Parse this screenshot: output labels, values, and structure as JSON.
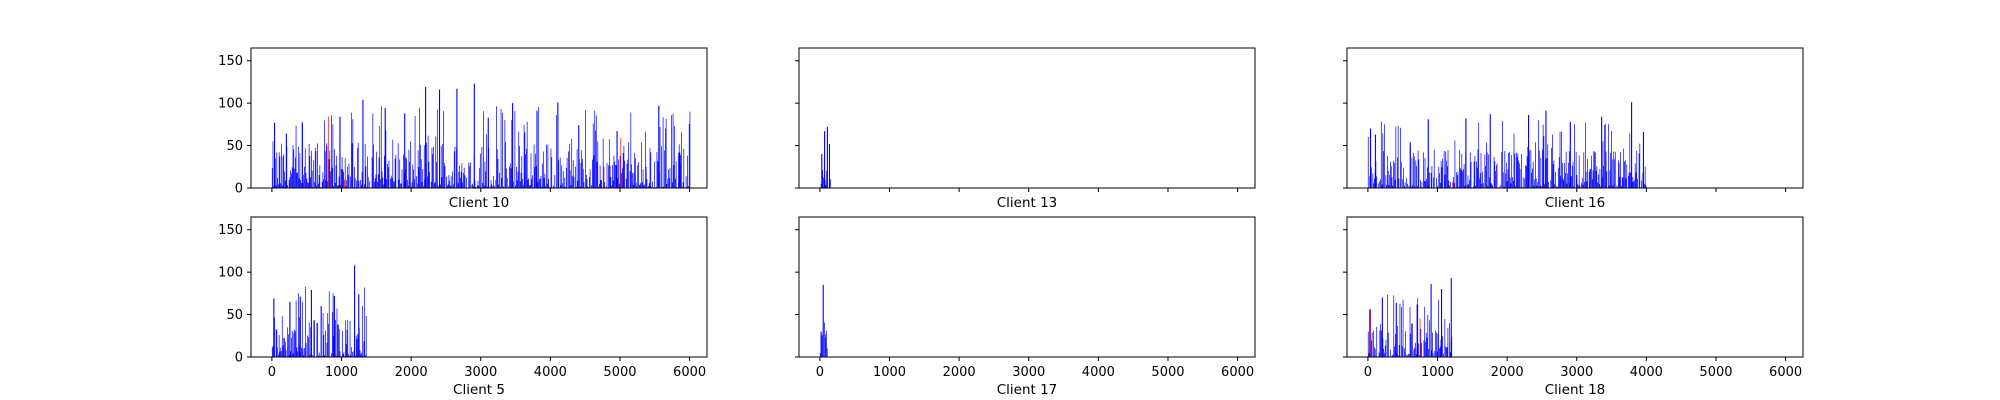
{
  "figure": {
    "bar_color": "#0000ff",
    "alt_bar_color": "#ff0000",
    "axes_color": "#000000"
  },
  "chart_data": [
    {
      "type": "bar",
      "title": "Client 10",
      "xlim": [
        -300,
        6250
      ],
      "ylim": [
        0,
        165
      ],
      "yticks": [
        0,
        50,
        100,
        150
      ],
      "xticks": [
        0,
        1000,
        2000,
        3000,
        4000,
        5000,
        6000
      ],
      "show_xtick_labels": false,
      "show_ytick_labels": true,
      "x_extent": [
        0,
        6000
      ],
      "sample_bars": [
        {
          "x": 30,
          "value": 77
        },
        {
          "x": 200,
          "value": 64
        },
        {
          "x": 430,
          "value": 76
        },
        {
          "x": 780,
          "value": 50
        },
        {
          "x": 970,
          "value": 84
        },
        {
          "x": 1300,
          "value": 104
        },
        {
          "x": 1620,
          "value": 94
        },
        {
          "x": 1900,
          "value": 88
        },
        {
          "x": 2200,
          "value": 119
        },
        {
          "x": 2400,
          "value": 116
        },
        {
          "x": 2650,
          "value": 117
        },
        {
          "x": 2900,
          "value": 123
        },
        {
          "x": 3100,
          "value": 83
        },
        {
          "x": 3450,
          "value": 100
        },
        {
          "x": 3800,
          "value": 91
        },
        {
          "x": 4100,
          "value": 101
        },
        {
          "x": 4400,
          "value": 74
        },
        {
          "x": 4950,
          "value": 67
        },
        {
          "x": 5550,
          "value": 97
        },
        {
          "x": 5850,
          "value": 42
        }
      ]
    },
    {
      "type": "bar",
      "title": "Client 13",
      "xlim": [
        -300,
        6250
      ],
      "ylim": [
        0,
        165
      ],
      "yticks": [
        0,
        50,
        100,
        150
      ],
      "xticks": [
        0,
        1000,
        2000,
        3000,
        4000,
        5000,
        6000
      ],
      "show_xtick_labels": false,
      "show_ytick_labels": false,
      "x_extent": [
        0,
        150
      ],
      "sample_bars": [
        {
          "x": 20,
          "value": 40
        },
        {
          "x": 60,
          "value": 67
        },
        {
          "x": 100,
          "value": 72
        },
        {
          "x": 130,
          "value": 52
        }
      ]
    },
    {
      "type": "bar",
      "title": "Client 16",
      "xlim": [
        -300,
        6250
      ],
      "ylim": [
        0,
        165
      ],
      "yticks": [
        0,
        50,
        100,
        150
      ],
      "xticks": [
        0,
        1000,
        2000,
        3000,
        4000,
        5000,
        6000
      ],
      "show_xtick_labels": false,
      "show_ytick_labels": false,
      "x_extent": [
        0,
        4000
      ],
      "sample_bars": [
        {
          "x": 30,
          "value": 70
        },
        {
          "x": 100,
          "value": 63
        },
        {
          "x": 600,
          "value": 54
        },
        {
          "x": 860,
          "value": 81
        },
        {
          "x": 1400,
          "value": 82
        },
        {
          "x": 1750,
          "value": 87
        },
        {
          "x": 2300,
          "value": 86
        },
        {
          "x": 2550,
          "value": 91
        },
        {
          "x": 2900,
          "value": 78
        },
        {
          "x": 3350,
          "value": 84
        },
        {
          "x": 3780,
          "value": 101
        },
        {
          "x": 3950,
          "value": 66
        }
      ]
    },
    {
      "type": "bar",
      "title": "Client 5",
      "xlim": [
        -300,
        6250
      ],
      "ylim": [
        0,
        165
      ],
      "yticks": [
        0,
        50,
        100,
        150
      ],
      "xticks": [
        0,
        1000,
        2000,
        3000,
        4000,
        5000,
        6000
      ],
      "show_xtick_labels": true,
      "show_ytick_labels": true,
      "x_extent": [
        0,
        1350
      ],
      "sample_bars": [
        {
          "x": 20,
          "value": 69
        },
        {
          "x": 250,
          "value": 65
        },
        {
          "x": 400,
          "value": 71
        },
        {
          "x": 560,
          "value": 79
        },
        {
          "x": 700,
          "value": 60
        },
        {
          "x": 890,
          "value": 72
        },
        {
          "x": 1180,
          "value": 108
        },
        {
          "x": 1240,
          "value": 74
        },
        {
          "x": 1320,
          "value": 19
        }
      ]
    },
    {
      "type": "bar",
      "title": "Client 17",
      "xlim": [
        -300,
        6250
      ],
      "ylim": [
        0,
        165
      ],
      "yticks": [
        0,
        50,
        100,
        150
      ],
      "xticks": [
        0,
        1000,
        2000,
        3000,
        4000,
        5000,
        6000
      ],
      "show_xtick_labels": true,
      "show_ytick_labels": false,
      "x_extent": [
        0,
        100
      ],
      "sample_bars": [
        {
          "x": 10,
          "value": 30
        },
        {
          "x": 40,
          "value": 85
        },
        {
          "x": 80,
          "value": 27
        }
      ]
    },
    {
      "type": "bar",
      "title": "Client 18",
      "xlim": [
        -300,
        6250
      ],
      "ylim": [
        0,
        165
      ],
      "yticks": [
        0,
        50,
        100,
        150
      ],
      "xticks": [
        0,
        1000,
        2000,
        3000,
        4000,
        5000,
        6000
      ],
      "show_xtick_labels": true,
      "show_ytick_labels": false,
      "x_extent": [
        0,
        1200
      ],
      "sample_bars": [
        {
          "x": 20,
          "value": 56
        },
        {
          "x": 200,
          "value": 70
        },
        {
          "x": 400,
          "value": 64
        },
        {
          "x": 700,
          "value": 62
        },
        {
          "x": 900,
          "value": 86
        },
        {
          "x": 1050,
          "value": 80
        },
        {
          "x": 1190,
          "value": 93
        }
      ]
    }
  ]
}
